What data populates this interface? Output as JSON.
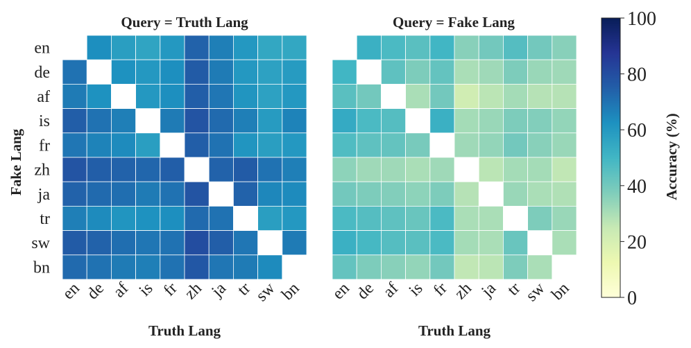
{
  "chart_data": [
    {
      "type": "heatmap",
      "title": "Query = Truth Lang",
      "xlabel": "Truth Lang",
      "ylabel": "Fake Lang",
      "x_categories": [
        "en",
        "de",
        "af",
        "is",
        "fr",
        "zh",
        "ja",
        "tr",
        "sw",
        "bn"
      ],
      "y_categories": [
        "en",
        "de",
        "af",
        "is",
        "fr",
        "zh",
        "ja",
        "tr",
        "sw",
        "bn"
      ],
      "values": [
        [
          null,
          63,
          58,
          56,
          60,
          74,
          67,
          60,
          55,
          55
        ],
        [
          70,
          null,
          62,
          60,
          63,
          76,
          68,
          60,
          57,
          59
        ],
        [
          68,
          62,
          null,
          60,
          63,
          75,
          69,
          61,
          57,
          60
        ],
        [
          75,
          70,
          67,
          null,
          68,
          78,
          72,
          67,
          59,
          66
        ],
        [
          69,
          66,
          64,
          58,
          null,
          75,
          70,
          61,
          58,
          60
        ],
        [
          78,
          75,
          74,
          73,
          75,
          null,
          74,
          76,
          70,
          67
        ],
        [
          74,
          72,
          71,
          68,
          70,
          78,
          null,
          74,
          65,
          64
        ],
        [
          67,
          64,
          61,
          62,
          63,
          72,
          70,
          null,
          58,
          60
        ],
        [
          76,
          74,
          71,
          69,
          70,
          80,
          75,
          69,
          null,
          68
        ],
        [
          72,
          70,
          68,
          67,
          70,
          77,
          69,
          68,
          64,
          null
        ]
      ],
      "vmin": 0,
      "vmax": 100
    },
    {
      "type": "heatmap",
      "title": "Query = Fake Lang",
      "xlabel": "Truth Lang",
      "ylabel": "",
      "x_categories": [
        "en",
        "de",
        "af",
        "is",
        "fr",
        "zh",
        "ja",
        "tr",
        "sw",
        "bn"
      ],
      "y_categories": [
        "en",
        "de",
        "af",
        "is",
        "fr",
        "zh",
        "ja",
        "tr",
        "sw",
        "bn"
      ],
      "values": [
        [
          null,
          52,
          48,
          45,
          50,
          36,
          40,
          46,
          40,
          36
        ],
        [
          50,
          null,
          44,
          38,
          43,
          30,
          32,
          38,
          33,
          32
        ],
        [
          45,
          40,
          null,
          30,
          40,
          22,
          27,
          31,
          28,
          28
        ],
        [
          54,
          48,
          46,
          null,
          52,
          31,
          33,
          38,
          37,
          34
        ],
        [
          47,
          44,
          43,
          39,
          null,
          32,
          34,
          40,
          36,
          33
        ],
        [
          35,
          32,
          32,
          30,
          32,
          null,
          27,
          31,
          31,
          26
        ],
        [
          40,
          38,
          37,
          35,
          38,
          28,
          null,
          33,
          30,
          29
        ],
        [
          48,
          46,
          44,
          42,
          48,
          30,
          30,
          null,
          38,
          33
        ],
        [
          52,
          49,
          46,
          45,
          48,
          31,
          30,
          42,
          null,
          30
        ],
        [
          43,
          38,
          36,
          34,
          40,
          26,
          27,
          38,
          30,
          null
        ]
      ],
      "vmin": 0,
      "vmax": 100
    }
  ],
  "colorbar": {
    "label": "Accuracy (%)",
    "ticks": [
      "0",
      "20",
      "40",
      "60",
      "80",
      "100"
    ],
    "colormap": "YlGnBu"
  }
}
